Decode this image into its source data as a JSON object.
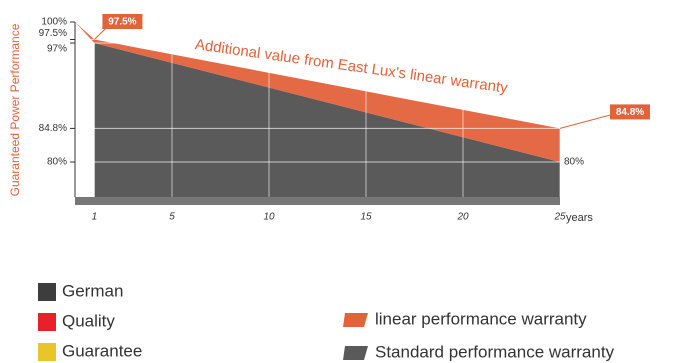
{
  "chart_data": {
    "type": "area",
    "y_label": "Guaranteed Power Performance",
    "x_label": "years",
    "annotation": "Additional value from East Lux's linear warranty",
    "xlim": [
      0,
      25
    ],
    "xticks": [
      1,
      5,
      10,
      15,
      20,
      25
    ],
    "ylim": [
      75,
      100
    ],
    "yticks": [
      {
        "value": 100,
        "label": "100%"
      },
      {
        "value": 97.5,
        "label": "97.5%"
      },
      {
        "value": 97,
        "label": "97%"
      },
      {
        "value": 84.8,
        "label": "84.8%"
      },
      {
        "value": 80,
        "label": "80%"
      }
    ],
    "grid": true,
    "series": [
      {
        "name": "linear performance warranty",
        "color": "#e2623a",
        "x": [
          0,
          1,
          25
        ],
        "values": [
          100,
          97.5,
          84.8
        ],
        "value_labels": [
          null,
          "97.5%",
          "84.8%"
        ]
      },
      {
        "name": "Standard performance warranty",
        "color": "#5a5a5a",
        "x": [
          1,
          25
        ],
        "values": [
          97,
          80
        ],
        "value_labels": [
          null,
          "80%"
        ]
      }
    ],
    "badges": [
      {
        "text": "German",
        "color": "#3d3d3d"
      },
      {
        "text": "Quality",
        "color": "#e8202a"
      },
      {
        "text": "Guarantee",
        "color": "#e8c62a"
      }
    ]
  }
}
